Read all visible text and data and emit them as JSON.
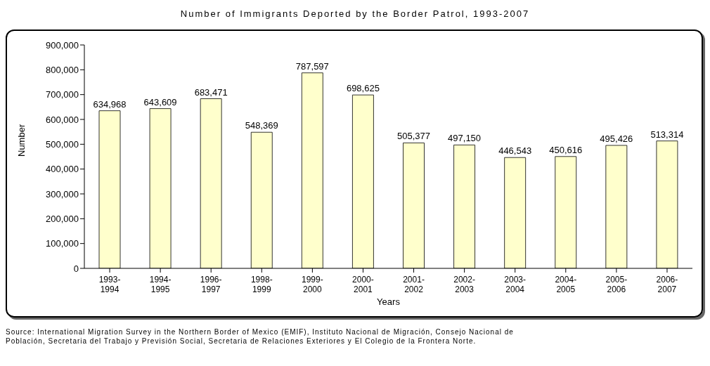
{
  "chart_data": {
    "type": "bar",
    "title": "Number of Immigrants Deported by the Border Patrol, 1993-2007",
    "xlabel": "Years",
    "ylabel": "Number",
    "categories": [
      "1993-1994",
      "1994-1995",
      "1996-1997",
      "1998-1999",
      "1999-2000",
      "2000-2001",
      "2001-2002",
      "2002-2003",
      "2003-2004",
      "2004-2005",
      "2005-2006",
      "2006-2007"
    ],
    "values": [
      634968,
      643609,
      683471,
      548369,
      787597,
      698625,
      505377,
      497150,
      446543,
      450616,
      495426,
      513314
    ],
    "color": "#ffffcc",
    "grid": false,
    "legend": false,
    "value_labels": [
      "634,968",
      "643,609",
      "683,471",
      "548,369",
      "787,597",
      "698,625",
      "505,377",
      "497,150",
      "446,543",
      "450,616",
      "495,426",
      "513,314"
    ],
    "ylim": [
      0,
      900000
    ],
    "yticks": [
      0,
      {
        "value": 100000,
        "label": "100,000"
      },
      {
        "value": 200000,
        "label": "200,000"
      },
      {
        "value": 300000,
        "label": "300,000"
      },
      {
        "value": 400000,
        "label": "400,000"
      },
      {
        "value": 500000,
        "label": "500,000"
      },
      {
        "value": 600000,
        "label": "600,000"
      },
      {
        "value": 700000,
        "label": "700,000"
      },
      {
        "value": 800000,
        "label": "800,000"
      },
      {
        "value": 900000,
        "label": "900,000"
      }
    ],
    "annotations": [
      "Source: International Migration Survey in the Northern Border of Mexico (EMIF), Instituto Nacional de Migración, Consejo Nacional de Población, Secretaria del Trabajo y Previsión Social, Secretaria de Relaciones Exteriores y El Colegio de la Frontera Norte."
    ]
  }
}
